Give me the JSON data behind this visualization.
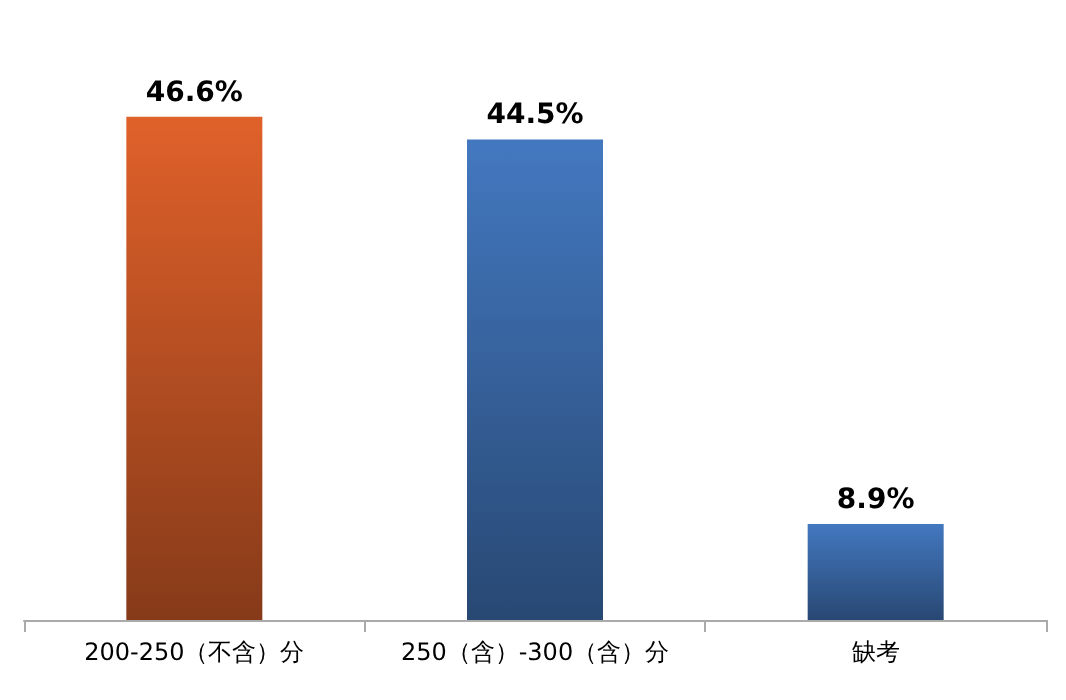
{
  "chart_data": {
    "type": "bar",
    "categories": [
      "200-250（不含）分",
      "250（含）-300（含）分",
      "缺考"
    ],
    "values": [
      46.6,
      44.5,
      8.9
    ],
    "colors": [
      "#e0612a",
      "#4378c0",
      "#4378c0"
    ],
    "value_labels": [
      "46.6%",
      "44.5%",
      "8.9%"
    ]
  }
}
